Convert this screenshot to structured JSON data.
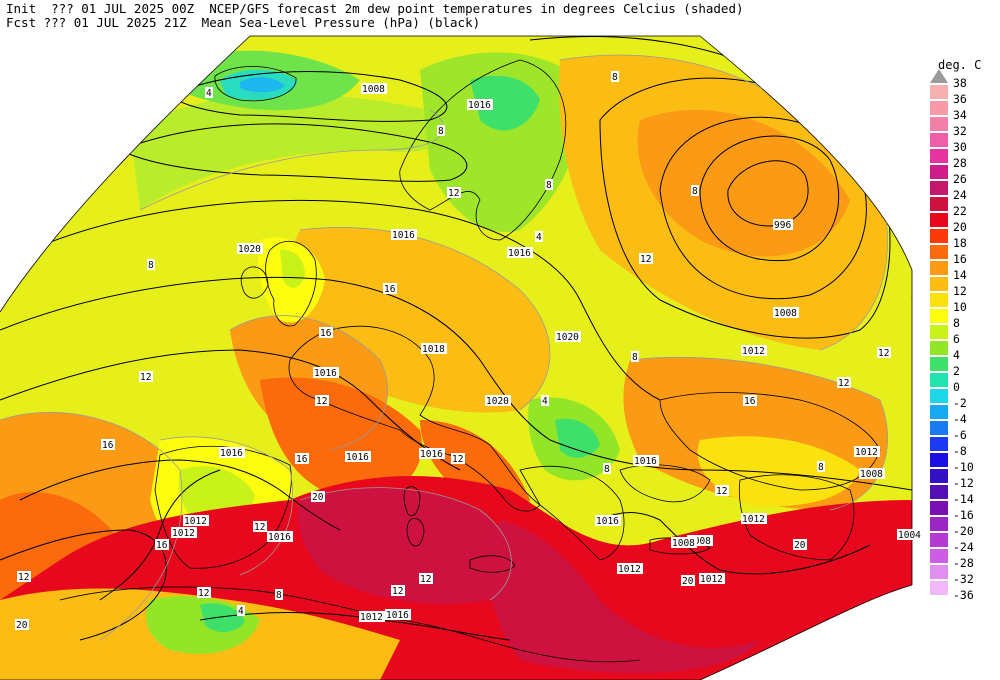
{
  "header": {
    "line1": "Init  ??? 01 JUL 2025 00Z  NCEP/GFS forecast 2m dew point temperatures in degrees Celcius (shaded)",
    "line2": "Fcst ??? 01 JUL 2025 21Z  Mean Sea-Level Pressure (hPa) (black)"
  },
  "colorbar": {
    "unit": "deg. C",
    "levels": [
      {
        "label": "38",
        "color": "#9a9a9a"
      },
      {
        "label": "36",
        "color": "#f7b0b0"
      },
      {
        "label": "34",
        "color": "#f79aa8"
      },
      {
        "label": "32",
        "color": "#f280a6"
      },
      {
        "label": "30",
        "color": "#ee5fa8"
      },
      {
        "label": "28",
        "color": "#e7339f"
      },
      {
        "label": "26",
        "color": "#d01c8b"
      },
      {
        "label": "24",
        "color": "#c41769"
      },
      {
        "label": "22",
        "color": "#ce1240"
      },
      {
        "label": "20",
        "color": "#e8081e"
      },
      {
        "label": "18",
        "color": "#fb3a07"
      },
      {
        "label": "16",
        "color": "#fb6a0b"
      },
      {
        "label": "14",
        "color": "#fb9a14"
      },
      {
        "label": "12",
        "color": "#fbbd14"
      },
      {
        "label": "10",
        "color": "#fbe10e"
      },
      {
        "label": "8",
        "color": "#fcfc0f"
      },
      {
        "label": "6",
        "color": "#c9f219"
      },
      {
        "label": "4",
        "color": "#93e528"
      },
      {
        "label": "2",
        "color": "#3fe06a"
      },
      {
        "label": "0",
        "color": "#22e2ae"
      },
      {
        "label": "-2",
        "color": "#1ed6e8"
      },
      {
        "label": "-4",
        "color": "#17aaf2"
      },
      {
        "label": "-6",
        "color": "#1a7af2"
      },
      {
        "label": "-8",
        "color": "#1b3af2"
      },
      {
        "label": "-10",
        "color": "#1a0fe0"
      },
      {
        "label": "-12",
        "color": "#3410c4"
      },
      {
        "label": "-14",
        "color": "#5410b4"
      },
      {
        "label": "-16",
        "color": "#7810b4"
      },
      {
        "label": "-20",
        "color": "#9a26c4"
      },
      {
        "label": "-24",
        "color": "#b53ad4"
      },
      {
        "label": "-28",
        "color": "#cc5de4"
      },
      {
        "label": "-32",
        "color": "#e08ef0"
      },
      {
        "label": "-36",
        "color": "#f0b8f8"
      }
    ]
  },
  "pressure_labels": [
    "1008",
    "1016",
    "1016",
    "1020",
    "1016",
    "1018",
    "1020",
    "1020",
    "996",
    "1008",
    "1012",
    "1016",
    "1016",
    "1016",
    "1016",
    "1012",
    "1012",
    "1016",
    "1016",
    "1012",
    "1008",
    "1012",
    "1004",
    "1008",
    "1012",
    "1016",
    "1012",
    "1008",
    "1016",
    "1012"
  ],
  "dewpoint_labels": [
    "4",
    "8",
    "8",
    "12",
    "8",
    "8",
    "8",
    "12",
    "16",
    "16",
    "12",
    "16",
    "12",
    "16",
    "20",
    "8",
    "12",
    "4",
    "12",
    "16",
    "20",
    "16",
    "12",
    "12",
    "8",
    "20",
    "12",
    "4",
    "8",
    "12",
    "8",
    "12",
    "20",
    "12",
    "12",
    "4"
  ]
}
